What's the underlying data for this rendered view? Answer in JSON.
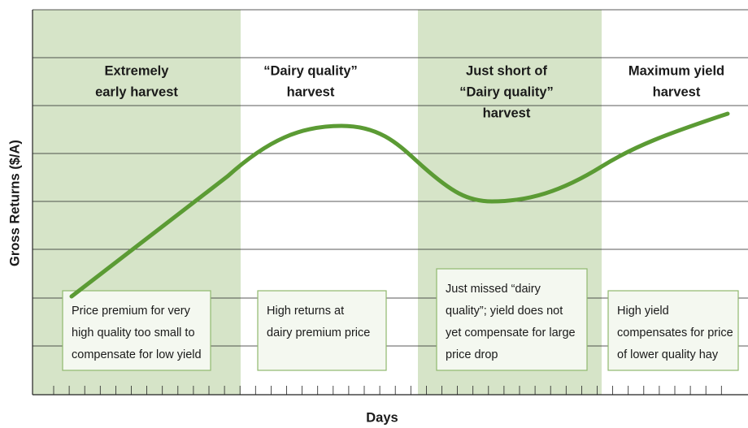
{
  "y_axis_label": "Gross Returns ($/A)",
  "x_axis_label": "Days",
  "zones": [
    {
      "heading": [
        "Extremely",
        "early harvest"
      ],
      "note": [
        "Price premium for very",
        "high quality too small to",
        "compensate for low yield"
      ]
    },
    {
      "heading": [
        "“Dairy quality”",
        "harvest"
      ],
      "note": [
        "High returns at",
        "dairy premium price"
      ]
    },
    {
      "heading": [
        "Just short of",
        "“Dairy quality”",
        "harvest"
      ],
      "note": [
        "Just missed “dairy",
        "quality”; yield does not",
        "yet compensate for large",
        "price drop"
      ]
    },
    {
      "heading": [
        "Maximum yield",
        "harvest"
      ],
      "note": [
        "High yield",
        "compensates for price",
        "of lower quality hay"
      ]
    }
  ]
}
